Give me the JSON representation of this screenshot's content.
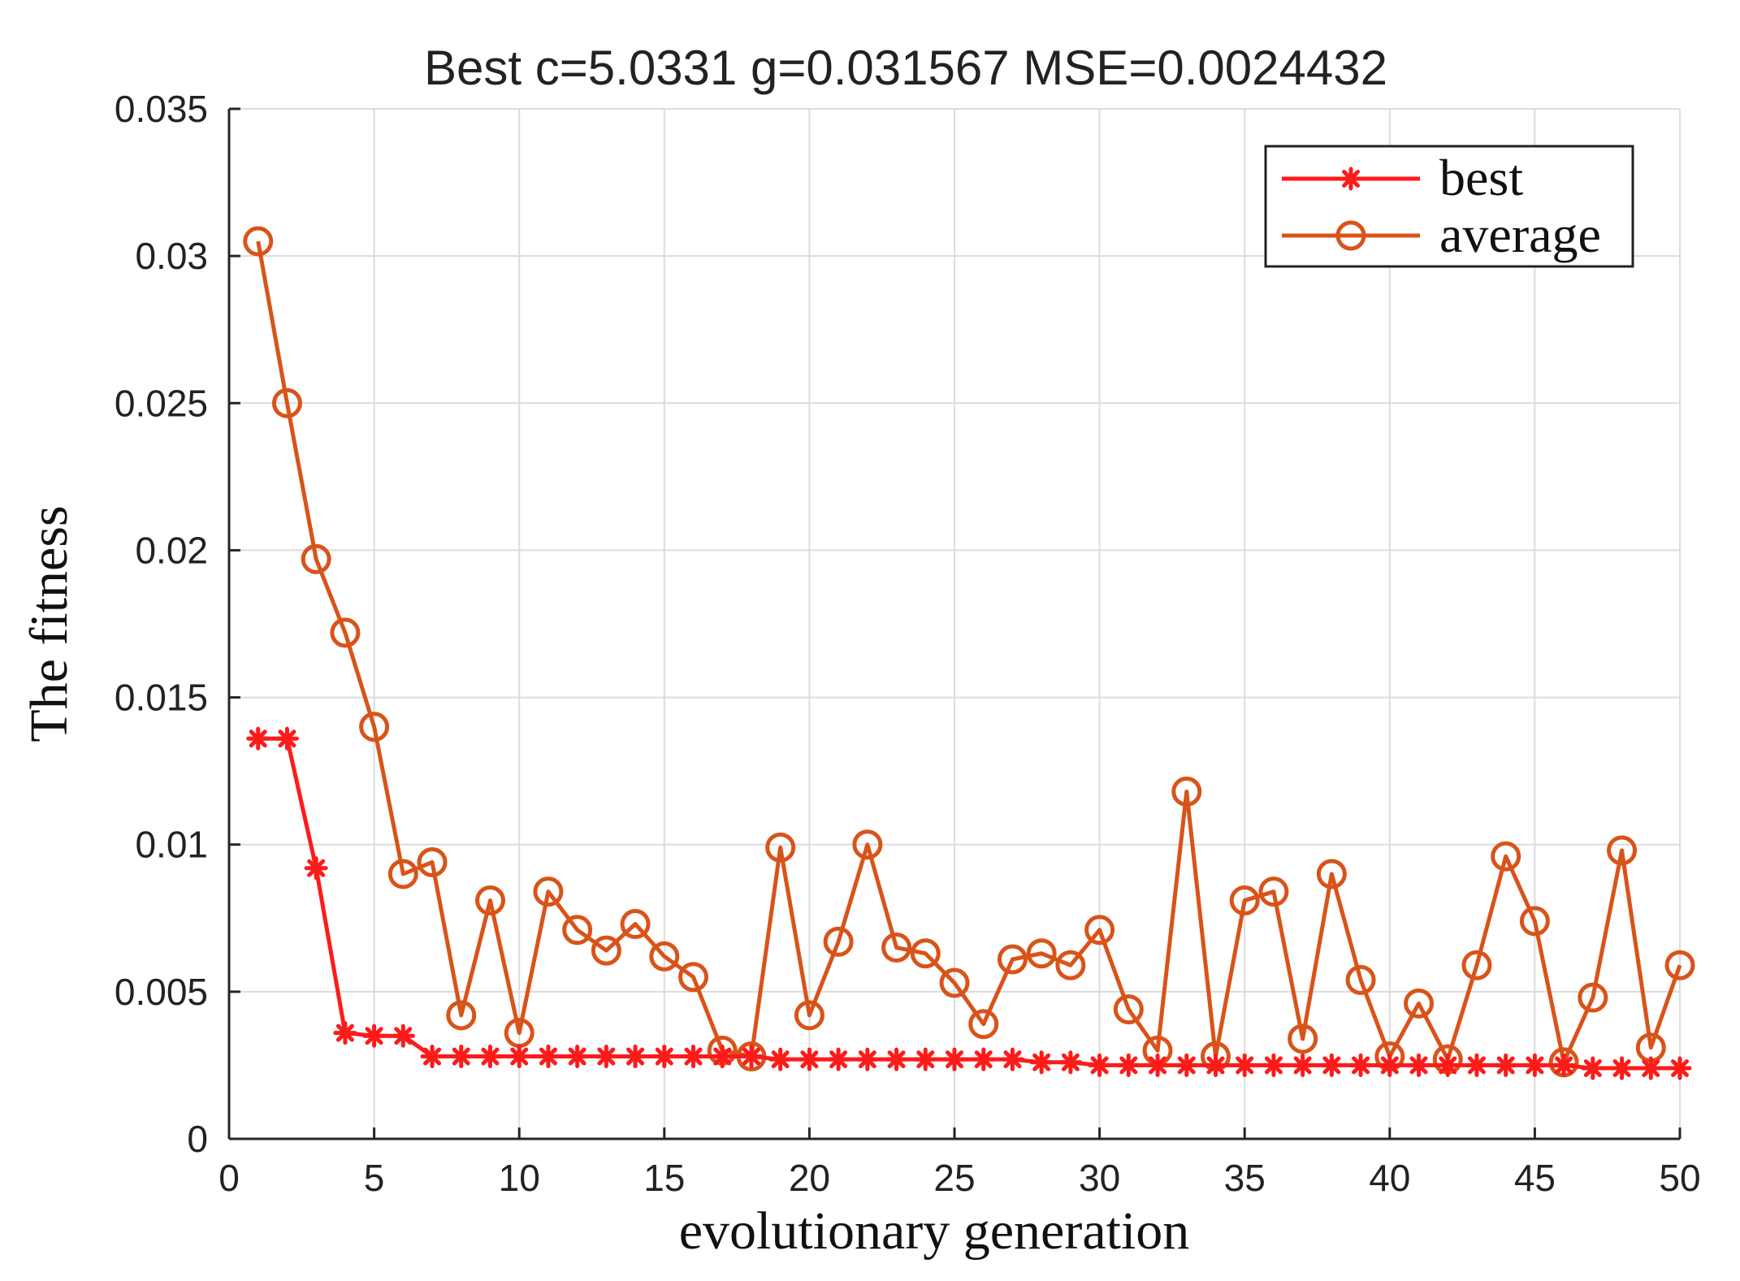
{
  "chart_data": {
    "type": "line",
    "title": "Best c=5.0331 g=0.031567 MSE=0.0024432",
    "xlabel": "evolutionary generation",
    "ylabel": "The fitness",
    "xlim": [
      0,
      50
    ],
    "ylim": [
      0,
      0.035
    ],
    "xticks": [
      0,
      5,
      10,
      15,
      20,
      25,
      30,
      35,
      40,
      45,
      50
    ],
    "xtick_labels": [
      "0",
      "5",
      "10",
      "15",
      "20",
      "25",
      "30",
      "35",
      "40",
      "45",
      "50"
    ],
    "yticks": [
      0,
      0.005,
      0.01,
      0.015,
      0.02,
      0.025,
      0.03,
      0.035
    ],
    "ytick_labels": [
      "0",
      "0.005",
      "0.01",
      "0.015",
      "0.02",
      "0.025",
      "0.03",
      "0.035"
    ],
    "grid": true,
    "legend_position": "top-right",
    "x": [
      1,
      2,
      3,
      4,
      5,
      6,
      7,
      8,
      9,
      10,
      11,
      12,
      13,
      14,
      15,
      16,
      17,
      18,
      19,
      20,
      21,
      22,
      23,
      24,
      25,
      26,
      27,
      28,
      29,
      30,
      31,
      32,
      33,
      34,
      35,
      36,
      37,
      38,
      39,
      40,
      41,
      42,
      43,
      44,
      45,
      46,
      47,
      48,
      49,
      50
    ],
    "series": [
      {
        "name": "best",
        "color": "#ff1a1a",
        "marker": "asterisk",
        "values": [
          0.0136,
          0.0136,
          0.0092,
          0.0036,
          0.0035,
          0.0035,
          0.0028,
          0.0028,
          0.0028,
          0.0028,
          0.0028,
          0.0028,
          0.0028,
          0.0028,
          0.0028,
          0.0028,
          0.0028,
          0.0028,
          0.0027,
          0.0027,
          0.0027,
          0.0027,
          0.0027,
          0.0027,
          0.0027,
          0.0027,
          0.0027,
          0.0026,
          0.0026,
          0.0025,
          0.0025,
          0.0025,
          0.0025,
          0.0025,
          0.0025,
          0.0025,
          0.0025,
          0.0025,
          0.0025,
          0.0025,
          0.0025,
          0.0025,
          0.0025,
          0.0025,
          0.0025,
          0.0025,
          0.0024,
          0.0024,
          0.0024,
          0.0024
        ]
      },
      {
        "name": "average",
        "color": "#d95319",
        "marker": "circle",
        "values": [
          0.0305,
          0.025,
          0.0197,
          0.0172,
          0.014,
          0.009,
          0.0094,
          0.0042,
          0.0081,
          0.0036,
          0.0084,
          0.0071,
          0.0064,
          0.0073,
          0.0062,
          0.0055,
          0.003,
          0.0028,
          0.0099,
          0.0042,
          0.0067,
          0.01,
          0.0065,
          0.0063,
          0.0053,
          0.0039,
          0.0061,
          0.0063,
          0.0059,
          0.0071,
          0.0044,
          0.003,
          0.0118,
          0.0028,
          0.0081,
          0.0084,
          0.0034,
          0.009,
          0.0054,
          0.0028,
          0.0046,
          0.0027,
          0.0059,
          0.0096,
          0.0074,
          0.0026,
          0.0048,
          0.0098,
          0.0031,
          0.0059
        ]
      }
    ]
  }
}
